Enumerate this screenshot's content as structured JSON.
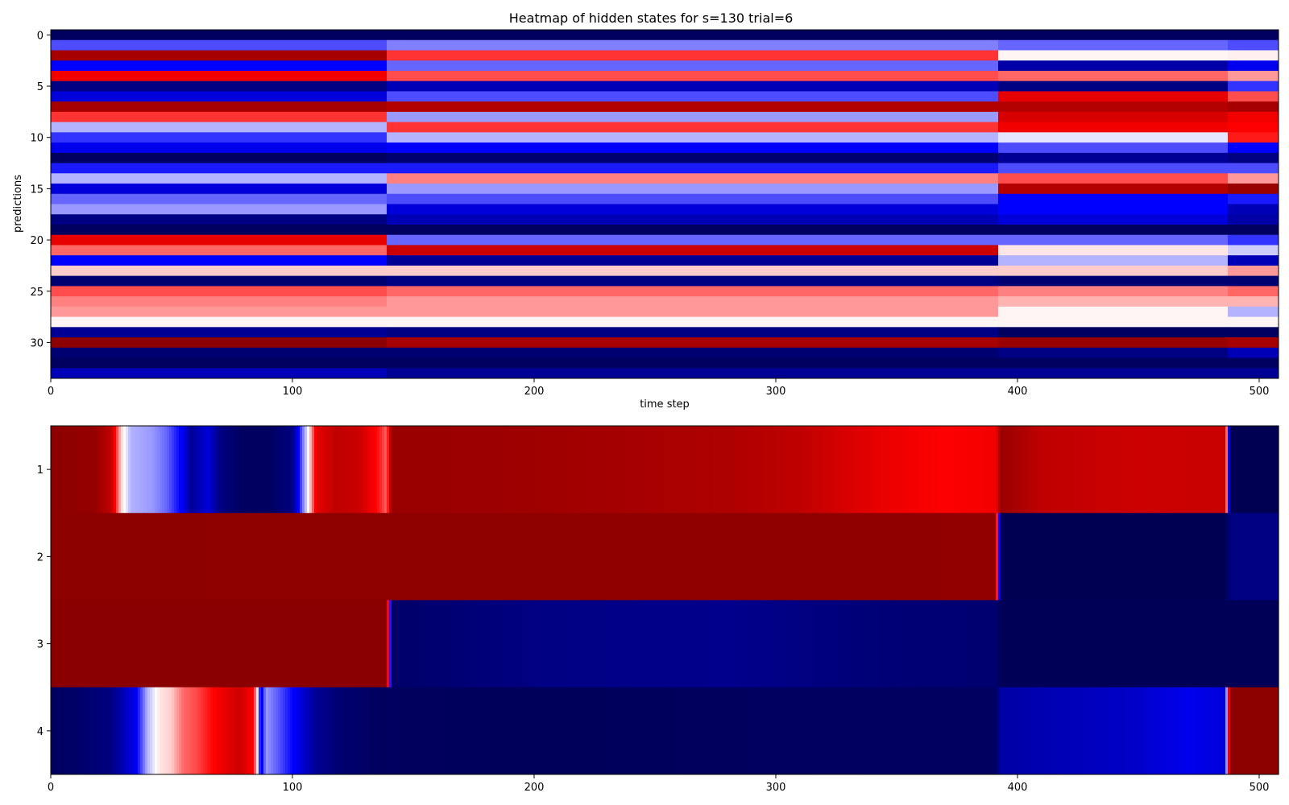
{
  "chart_data": [
    {
      "type": "heatmap",
      "title": "Heatmap of hidden states for s=130 trial=6",
      "xlabel": "time step",
      "ylabel": "predictions",
      "colormap": "seismic",
      "xlim": [
        0,
        508
      ],
      "ylim": [
        33.5,
        -0.5
      ],
      "x_ticks": [
        0,
        100,
        200,
        300,
        400,
        500
      ],
      "y_ticks": [
        0,
        5,
        10,
        15,
        20,
        25,
        30
      ],
      "rows": 34,
      "segment_boundaries": [
        0,
        139,
        392,
        487,
        508
      ],
      "approx_values_by_segment": [
        [
          -0.95,
          -0.95,
          -0.95,
          -0.95
        ],
        [
          -0.35,
          -0.25,
          -0.3,
          -0.35
        ],
        [
          0.85,
          0.4,
          0.02,
          0.03
        ],
        [
          -0.5,
          -0.3,
          -0.75,
          -0.55
        ],
        [
          0.55,
          0.35,
          0.3,
          0.2
        ],
        [
          -0.85,
          -0.7,
          -0.85,
          -0.4
        ],
        [
          -0.6,
          -0.35,
          0.6,
          0.35
        ],
        [
          0.85,
          0.8,
          0.8,
          0.85
        ],
        [
          0.4,
          -0.2,
          0.65,
          0.55
        ],
        [
          -0.15,
          0.4,
          0.55,
          0.5
        ],
        [
          -0.4,
          -0.15,
          -0.05,
          0.45
        ],
        [
          -0.55,
          -0.5,
          -0.35,
          -0.5
        ],
        [
          -0.95,
          -0.9,
          -0.8,
          -0.85
        ],
        [
          -0.45,
          -0.45,
          -0.35,
          -0.35
        ],
        [
          -0.15,
          0.25,
          0.35,
          0.2
        ],
        [
          -0.6,
          -0.2,
          0.8,
          0.9
        ],
        [
          -0.3,
          -0.35,
          -0.5,
          -0.45
        ],
        [
          -0.2,
          -0.6,
          -0.5,
          -0.7
        ],
        [
          -0.85,
          -0.7,
          -0.6,
          -0.75
        ],
        [
          -0.95,
          -0.95,
          -0.95,
          -0.95
        ],
        [
          0.6,
          -0.3,
          -0.3,
          -0.4
        ],
        [
          0.3,
          0.7,
          0.05,
          -0.1
        ],
        [
          -0.5,
          -0.8,
          -0.15,
          -0.7
        ],
        [
          0.1,
          0.1,
          0.1,
          0.2
        ],
        [
          -0.9,
          -0.85,
          -0.9,
          -0.9
        ],
        [
          0.35,
          0.3,
          0.25,
          0.3
        ],
        [
          0.25,
          0.2,
          0.15,
          0.15
        ],
        [
          0.2,
          0.2,
          0.02,
          -0.15
        ],
        [
          0.02,
          0.02,
          0.02,
          0.02
        ],
        [
          -0.8,
          -0.85,
          -0.95,
          -0.95
        ],
        [
          0.95,
          0.85,
          0.9,
          0.85
        ],
        [
          -0.9,
          -0.9,
          -0.85,
          -0.7
        ],
        [
          -0.95,
          -0.95,
          -0.95,
          -0.95
        ],
        [
          -0.7,
          -0.8,
          -0.8,
          -0.8
        ]
      ]
    },
    {
      "type": "heatmap",
      "title": "",
      "xlabel": "",
      "ylabel": "",
      "colormap": "seismic",
      "xlim": [
        0,
        508
      ],
      "x_ticks": [
        0,
        100,
        200,
        300,
        400,
        500
      ],
      "y_ticks": [
        1,
        2,
        3,
        4
      ],
      "rows": [
        1,
        2,
        3,
        4
      ],
      "approx_values_keypoints": [
        [
          [
            0,
            0.95
          ],
          [
            18,
            0.92
          ],
          [
            25,
            0.75
          ],
          [
            29,
            0.1
          ],
          [
            33,
            -0.15
          ],
          [
            42,
            -0.2
          ],
          [
            48,
            -0.3
          ],
          [
            55,
            -0.55
          ],
          [
            58,
            -0.8
          ],
          [
            65,
            -0.6
          ],
          [
            70,
            -0.85
          ],
          [
            80,
            -0.95
          ],
          [
            90,
            -0.95
          ],
          [
            100,
            -0.85
          ],
          [
            104,
            -0.3
          ],
          [
            107,
            0.05
          ],
          [
            110,
            0.6
          ],
          [
            118,
            0.75
          ],
          [
            128,
            0.7
          ],
          [
            136,
            0.45
          ],
          [
            139,
            0.3
          ],
          [
            141,
            0.9
          ],
          [
            200,
            0.88
          ],
          [
            280,
            0.82
          ],
          [
            310,
            0.75
          ],
          [
            340,
            0.6
          ],
          [
            370,
            0.5
          ],
          [
            391,
            0.55
          ],
          [
            393,
            0.9
          ],
          [
            410,
            0.75
          ],
          [
            450,
            0.7
          ],
          [
            486,
            0.72
          ],
          [
            488,
            -0.98
          ],
          [
            508,
            -0.98
          ]
        ],
        [
          [
            0,
            0.95
          ],
          [
            391,
            0.93
          ],
          [
            393,
            -0.98
          ],
          [
            486,
            -0.98
          ],
          [
            488,
            -0.85
          ],
          [
            508,
            -0.85
          ]
        ],
        [
          [
            0,
            0.96
          ],
          [
            139,
            0.96
          ],
          [
            141,
            -0.92
          ],
          [
            200,
            -0.85
          ],
          [
            280,
            -0.82
          ],
          [
            340,
            -0.88
          ],
          [
            391,
            -0.9
          ],
          [
            393,
            -0.97
          ],
          [
            508,
            -0.97
          ]
        ],
        [
          [
            0,
            -0.95
          ],
          [
            15,
            -0.9
          ],
          [
            25,
            -0.85
          ],
          [
            35,
            -0.55
          ],
          [
            40,
            -0.15
          ],
          [
            45,
            0.05
          ],
          [
            50,
            0.1
          ],
          [
            55,
            0.3
          ],
          [
            60,
            0.35
          ],
          [
            70,
            0.55
          ],
          [
            78,
            0.7
          ],
          [
            84,
            0.5
          ],
          [
            87,
            -0.6
          ],
          [
            89,
            -0.2
          ],
          [
            95,
            -0.35
          ],
          [
            102,
            -0.55
          ],
          [
            110,
            -0.8
          ],
          [
            120,
            -0.9
          ],
          [
            139,
            -0.95
          ],
          [
            200,
            -0.96
          ],
          [
            391,
            -0.94
          ],
          [
            393,
            -0.75
          ],
          [
            420,
            -0.7
          ],
          [
            450,
            -0.65
          ],
          [
            470,
            -0.55
          ],
          [
            486,
            -0.6
          ],
          [
            488,
            0.95
          ],
          [
            508,
            0.95
          ]
        ]
      ]
    }
  ]
}
